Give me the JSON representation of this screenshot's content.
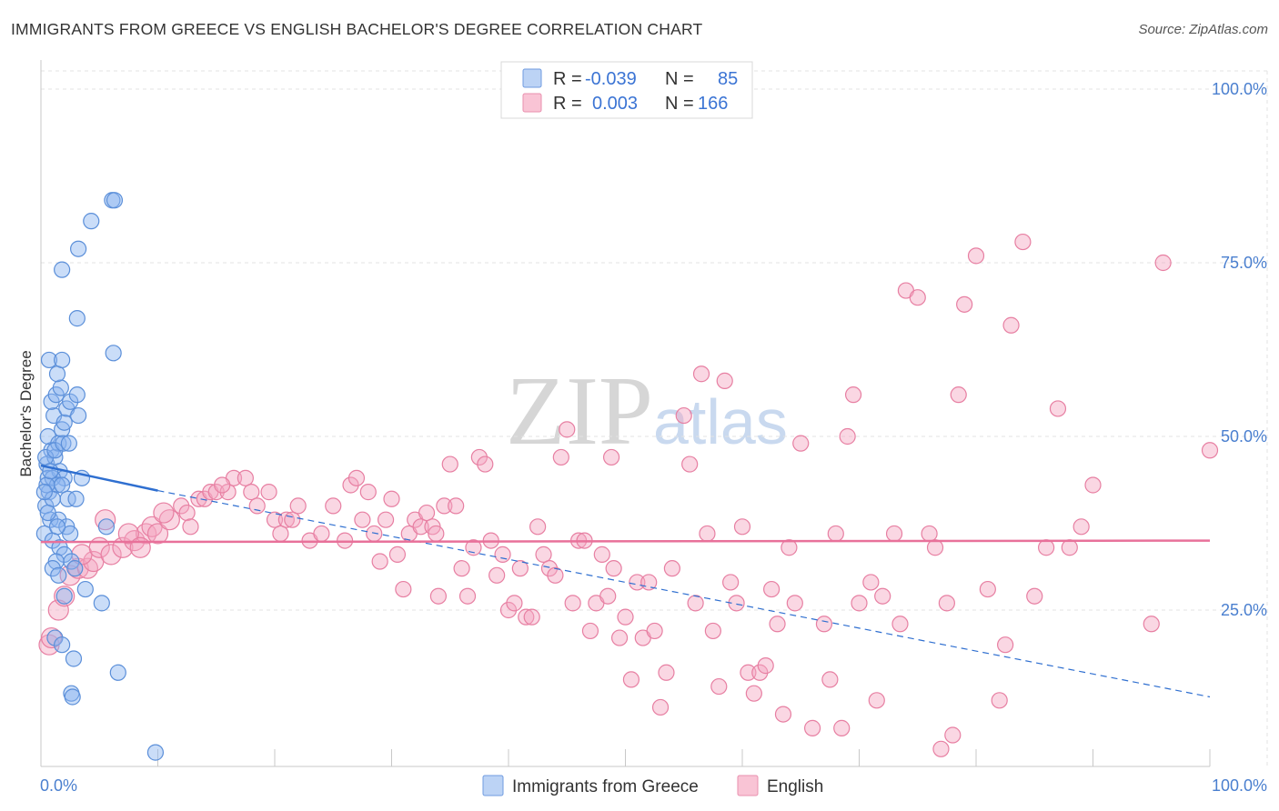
{
  "title": "IMMIGRANTS FROM GREECE VS ENGLISH BACHELOR'S DEGREE CORRELATION CHART",
  "source": "Source: ZipAtlas.com",
  "watermark": {
    "zip": "ZIP",
    "atlas": "atlas"
  },
  "colors": {
    "blue": "#8ab4f0",
    "blue_stroke": "#5b8fd9",
    "blue_line": "#2f6fd0",
    "pink": "#f4a6c0",
    "pink_stroke": "#e77fa2",
    "pink_line": "#e8719a",
    "axis_text": "#4a7fcf"
  },
  "legend": {
    "rows": [
      {
        "r_label": "R =",
        "r_value": "-0.039",
        "n_label": "N =",
        "n_value": "85"
      },
      {
        "r_label": "R =",
        "r_value": "0.003",
        "n_label": "N =",
        "n_value": "166"
      }
    ]
  },
  "chart_data": {
    "type": "scatter",
    "xlabel": "",
    "ylabel": "Bachelor's Degree",
    "xlim": [
      0,
      100
    ],
    "ylim": [
      0,
      100
    ],
    "x_tick_labels": [
      "0.0%",
      "100.0%"
    ],
    "y_tick_labels": [
      "25.0%",
      "50.0%",
      "75.0%",
      "100.0%"
    ],
    "y_tick_values": [
      25,
      50,
      75,
      100
    ],
    "legend_position": "top-center",
    "series": [
      {
        "name": "Immigrants from Greece",
        "color": "blue",
        "trend": {
          "x0": 0,
          "y0": 45.8,
          "x1": 10,
          "y1": 42.2,
          "dash_x1": 100,
          "dash_y1": 12.5
        },
        "points": [
          [
            0.5,
            46
          ],
          [
            0.6,
            44
          ],
          [
            0.7,
            42
          ],
          [
            0.4,
            40
          ],
          [
            0.8,
            38
          ],
          [
            0.3,
            36
          ],
          [
            1.0,
            35
          ],
          [
            0.9,
            48
          ],
          [
            0.6,
            50
          ],
          [
            1.2,
            47
          ],
          [
            1.5,
            49
          ],
          [
            1.8,
            51
          ],
          [
            1.1,
            53
          ],
          [
            2.0,
            52
          ],
          [
            2.2,
            54
          ],
          [
            0.9,
            55
          ],
          [
            1.3,
            56
          ],
          [
            2.5,
            55
          ],
          [
            3.1,
            56
          ],
          [
            1.7,
            57
          ],
          [
            1.4,
            59
          ],
          [
            0.7,
            61
          ],
          [
            1.8,
            61
          ],
          [
            3.2,
            53
          ],
          [
            1.6,
            45
          ],
          [
            2.0,
            44
          ],
          [
            1.0,
            44
          ],
          [
            1.4,
            43
          ],
          [
            1.8,
            43
          ],
          [
            0.5,
            43
          ],
          [
            2.3,
            41
          ],
          [
            3.0,
            41
          ],
          [
            1.0,
            41
          ],
          [
            1.5,
            38
          ],
          [
            2.2,
            37
          ],
          [
            2.5,
            36
          ],
          [
            1.6,
            34
          ],
          [
            2.0,
            33
          ],
          [
            1.3,
            32
          ],
          [
            2.6,
            32
          ],
          [
            1.0,
            31
          ],
          [
            1.5,
            30
          ],
          [
            3.8,
            28
          ],
          [
            2.0,
            27
          ],
          [
            5.2,
            26
          ],
          [
            1.2,
            21
          ],
          [
            1.8,
            20
          ],
          [
            2.8,
            18
          ],
          [
            6.6,
            16
          ],
          [
            2.6,
            13
          ],
          [
            2.7,
            12.5
          ],
          [
            9.8,
            4.5
          ],
          [
            6.2,
            62
          ],
          [
            3.1,
            67
          ],
          [
            1.8,
            74
          ],
          [
            3.2,
            77
          ],
          [
            4.3,
            81
          ],
          [
            6.1,
            84
          ],
          [
            6.3,
            84
          ],
          [
            3.5,
            44
          ],
          [
            0.4,
            47
          ],
          [
            0.8,
            45
          ],
          [
            1.2,
            48
          ],
          [
            1.9,
            49
          ],
          [
            2.4,
            49
          ],
          [
            0.6,
            39
          ],
          [
            1.4,
            37
          ],
          [
            5.6,
            37
          ],
          [
            0.3,
            42
          ],
          [
            2.9,
            31
          ]
        ]
      },
      {
        "name": "English",
        "color": "pink",
        "trend": {
          "x0": 0,
          "y0": 34.8,
          "x1": 100,
          "y1": 35.0
        },
        "points": [
          [
            0.7,
            20
          ],
          [
            0.9,
            21
          ],
          [
            1.5,
            25
          ],
          [
            2.0,
            27
          ],
          [
            2.5,
            30
          ],
          [
            3.2,
            31
          ],
          [
            4.0,
            31
          ],
          [
            4.5,
            32
          ],
          [
            3.5,
            33
          ],
          [
            5.0,
            34
          ],
          [
            6.0,
            33
          ],
          [
            7.0,
            34
          ],
          [
            8.0,
            35
          ],
          [
            9.0,
            36
          ],
          [
            9.5,
            37
          ],
          [
            10.0,
            36
          ],
          [
            11.0,
            38
          ],
          [
            12.0,
            40
          ],
          [
            12.5,
            39
          ],
          [
            13.5,
            41
          ],
          [
            14.0,
            41
          ],
          [
            14.5,
            42
          ],
          [
            15.0,
            42
          ],
          [
            16.0,
            42
          ],
          [
            16.5,
            44
          ],
          [
            17.5,
            44
          ],
          [
            18.0,
            42
          ],
          [
            18.5,
            40
          ],
          [
            19.5,
            42
          ],
          [
            20.0,
            38
          ],
          [
            20.5,
            36
          ],
          [
            21.0,
            38
          ],
          [
            21.5,
            38
          ],
          [
            22.0,
            40
          ],
          [
            23.0,
            35
          ],
          [
            24.0,
            36
          ],
          [
            25.0,
            40
          ],
          [
            26.0,
            35
          ],
          [
            26.5,
            43
          ],
          [
            27.0,
            44
          ],
          [
            27.5,
            38
          ],
          [
            28.0,
            42
          ],
          [
            28.5,
            36
          ],
          [
            29.0,
            32
          ],
          [
            29.5,
            38
          ],
          [
            30.0,
            41
          ],
          [
            30.5,
            33
          ],
          [
            31.0,
            28
          ],
          [
            31.5,
            36
          ],
          [
            32.0,
            38
          ],
          [
            32.5,
            37
          ],
          [
            33.0,
            39
          ],
          [
            33.5,
            37
          ],
          [
            34.0,
            27
          ],
          [
            34.5,
            40
          ],
          [
            35.0,
            46
          ],
          [
            35.5,
            40
          ],
          [
            36.0,
            31
          ],
          [
            36.5,
            27
          ],
          [
            37.0,
            34
          ],
          [
            37.5,
            47
          ],
          [
            38.0,
            46
          ],
          [
            38.5,
            35
          ],
          [
            39.0,
            30
          ],
          [
            39.5,
            33
          ],
          [
            40.0,
            25
          ],
          [
            40.5,
            26
          ],
          [
            41.0,
            31
          ],
          [
            41.5,
            24
          ],
          [
            42.0,
            24
          ],
          [
            42.5,
            37
          ],
          [
            43.0,
            33
          ],
          [
            43.5,
            31
          ],
          [
            44.0,
            30
          ],
          [
            44.5,
            47
          ],
          [
            45.0,
            51
          ],
          [
            45.5,
            26
          ],
          [
            46.0,
            35
          ],
          [
            46.5,
            35
          ],
          [
            47.0,
            22
          ],
          [
            47.5,
            26
          ],
          [
            48.0,
            33
          ],
          [
            48.5,
            27
          ],
          [
            49.0,
            31
          ],
          [
            49.5,
            21
          ],
          [
            50.0,
            24
          ],
          [
            50.5,
            15
          ],
          [
            51.0,
            29
          ],
          [
            51.5,
            21
          ],
          [
            52.0,
            29
          ],
          [
            52.5,
            22
          ],
          [
            53.0,
            11
          ],
          [
            53.5,
            16
          ],
          [
            54.0,
            31
          ],
          [
            55.0,
            53
          ],
          [
            55.5,
            46
          ],
          [
            56.0,
            26
          ],
          [
            56.5,
            59
          ],
          [
            57.0,
            36
          ],
          [
            57.5,
            22
          ],
          [
            58.0,
            14
          ],
          [
            58.5,
            58
          ],
          [
            59.0,
            29
          ],
          [
            59.5,
            26
          ],
          [
            60.0,
            37
          ],
          [
            60.5,
            16
          ],
          [
            61.0,
            13
          ],
          [
            61.5,
            16
          ],
          [
            62.0,
            17
          ],
          [
            62.5,
            28
          ],
          [
            63.0,
            23
          ],
          [
            63.5,
            10
          ],
          [
            64.0,
            34
          ],
          [
            64.5,
            26
          ],
          [
            65.0,
            49
          ],
          [
            66.0,
            8
          ],
          [
            67.0,
            23
          ],
          [
            67.5,
            15
          ],
          [
            68.0,
            36
          ],
          [
            68.5,
            8
          ],
          [
            69.0,
            50
          ],
          [
            69.5,
            56
          ],
          [
            70.0,
            26
          ],
          [
            71.0,
            29
          ],
          [
            71.5,
            12
          ],
          [
            72.0,
            27
          ],
          [
            73.0,
            36
          ],
          [
            73.5,
            23
          ],
          [
            74.0,
            71
          ],
          [
            75.0,
            70
          ],
          [
            76.0,
            36
          ],
          [
            76.5,
            34
          ],
          [
            77.0,
            5
          ],
          [
            77.5,
            26
          ],
          [
            78.0,
            7
          ],
          [
            78.5,
            56
          ],
          [
            79.0,
            69
          ],
          [
            80.0,
            76
          ],
          [
            81.0,
            28
          ],
          [
            82.0,
            12
          ],
          [
            82.5,
            20
          ],
          [
            83.0,
            66
          ],
          [
            84.0,
            78
          ],
          [
            85.0,
            27
          ],
          [
            86.0,
            34
          ],
          [
            87.0,
            54
          ],
          [
            88.0,
            34
          ],
          [
            89.0,
            37
          ],
          [
            90.0,
            43
          ],
          [
            95.0,
            23
          ],
          [
            96.0,
            75
          ],
          [
            100.0,
            48
          ],
          [
            5.5,
            38
          ],
          [
            7.5,
            36
          ],
          [
            8.5,
            34
          ],
          [
            10.5,
            39
          ],
          [
            12.8,
            37
          ],
          [
            15.5,
            43
          ],
          [
            33.8,
            36
          ],
          [
            48.8,
            47
          ]
        ]
      }
    ]
  }
}
